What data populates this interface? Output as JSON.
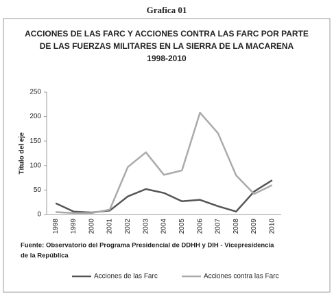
{
  "header": "Grafica 01",
  "chart_data": {
    "type": "line",
    "title": [
      "ACCIONES DE LAS FARC Y ACCIONES CONTRA LAS FARC POR PARTE",
      "DE  LAS FUERZAS MILITARES  EN  LA SIERRA DE LA MACARENA",
      "1998-2010"
    ],
    "y_label": "Título del eje",
    "categories": [
      "1998",
      "1999",
      "2000",
      "2001",
      "2002",
      "2003",
      "2004",
      "2005",
      "2006",
      "2007",
      "2008",
      "2009",
      "2010"
    ],
    "series": [
      {
        "name": "Acciones de las Farc",
        "color": "#555555",
        "values": [
          23,
          6,
          4,
          8,
          37,
          52,
          44,
          27,
          30,
          17,
          6,
          47,
          70
        ]
      },
      {
        "name": "Acciones contra las Farc",
        "color": "#aaaaaa",
        "values": [
          5,
          3,
          3,
          10,
          97,
          127,
          81,
          90,
          208,
          166,
          80,
          42,
          60
        ]
      }
    ],
    "ylim": [
      0,
      250
    ],
    "yticks": [
      0,
      50,
      100,
      150,
      200,
      250
    ],
    "grid": false,
    "legend": "bottom",
    "note": [
      "Fuente: Observatorio del Programa Presidencial de DDHH y DIH - Vicepresidencia",
      "de la República"
    ]
  }
}
